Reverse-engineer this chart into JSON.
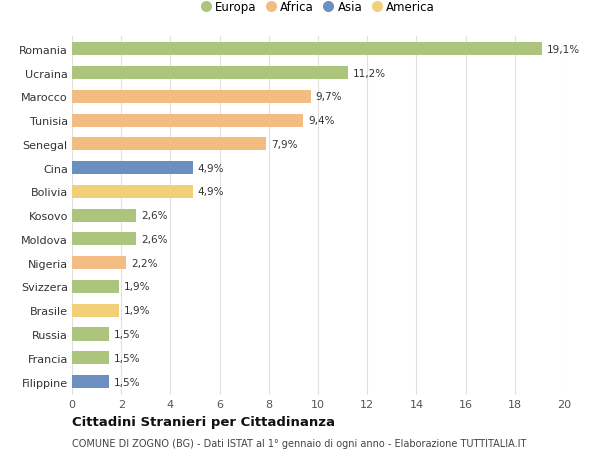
{
  "categories": [
    "Romania",
    "Ucraina",
    "Marocco",
    "Tunisia",
    "Senegal",
    "Cina",
    "Bolivia",
    "Kosovo",
    "Moldova",
    "Nigeria",
    "Svizzera",
    "Brasile",
    "Russia",
    "Francia",
    "Filippine"
  ],
  "values": [
    19.1,
    11.2,
    9.7,
    9.4,
    7.9,
    4.9,
    4.9,
    2.6,
    2.6,
    2.2,
    1.9,
    1.9,
    1.5,
    1.5,
    1.5
  ],
  "labels": [
    "19,1%",
    "11,2%",
    "9,7%",
    "9,4%",
    "7,9%",
    "4,9%",
    "4,9%",
    "2,6%",
    "2,6%",
    "2,2%",
    "1,9%",
    "1,9%",
    "1,5%",
    "1,5%",
    "1,5%"
  ],
  "continent": [
    "Europa",
    "Europa",
    "Africa",
    "Africa",
    "Africa",
    "Asia",
    "America",
    "Europa",
    "Europa",
    "Africa",
    "Europa",
    "America",
    "Europa",
    "Europa",
    "Asia"
  ],
  "colors": {
    "Europa": "#adc47c",
    "Africa": "#f2bc82",
    "Asia": "#6b8fc0",
    "America": "#f2d07a"
  },
  "legend_order": [
    "Europa",
    "Africa",
    "Asia",
    "America"
  ],
  "title": "Cittadini Stranieri per Cittadinanza",
  "subtitle": "COMUNE DI ZOGNO (BG) - Dati ISTAT al 1° gennaio di ogni anno - Elaborazione TUTTITALIA.IT",
  "xlim": [
    0,
    20
  ],
  "xticks": [
    0,
    2,
    4,
    6,
    8,
    10,
    12,
    14,
    16,
    18,
    20
  ],
  "background_color": "#ffffff",
  "grid_color": "#e0e0e0"
}
